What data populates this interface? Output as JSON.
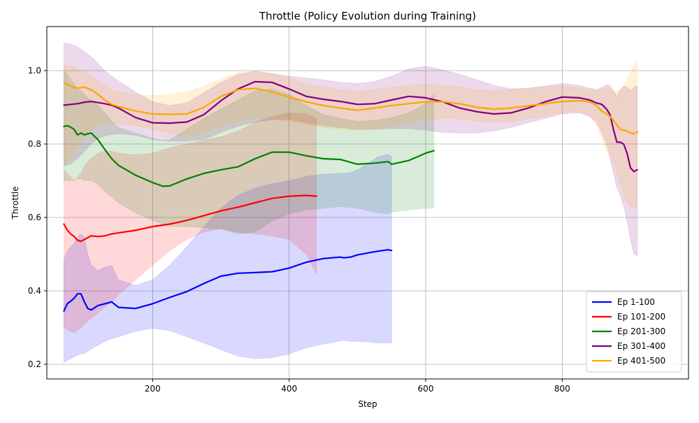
{
  "chart_data": {
    "type": "line",
    "title": "Throttle (Policy Evolution during Training)",
    "xlabel": "Step",
    "ylabel": "Throttle",
    "xlim": [
      45,
      985
    ],
    "ylim": [
      0.16,
      1.12
    ],
    "xticks": [
      200,
      400,
      600,
      800
    ],
    "yticks": [
      0.2,
      0.4,
      0.6,
      0.8,
      1.0
    ],
    "ytick_labels": [
      "0.2",
      "0.4",
      "0.6",
      "0.8",
      "1.0"
    ],
    "grid": true,
    "legend_position": "lower right",
    "band_opacity": 0.15,
    "series": [
      {
        "name": "Ep 1-100",
        "color": "#0000ff",
        "x": [
          70,
          75,
          80,
          85,
          90,
          95,
          100,
          105,
          110,
          120,
          130,
          140,
          150,
          175,
          200,
          225,
          250,
          275,
          300,
          325,
          350,
          375,
          400,
          425,
          450,
          475,
          480,
          490,
          500,
          520,
          530,
          545,
          550
        ],
        "y": [
          0.345,
          0.365,
          0.372,
          0.38,
          0.392,
          0.392,
          0.37,
          0.352,
          0.348,
          0.36,
          0.365,
          0.37,
          0.355,
          0.352,
          0.365,
          0.382,
          0.398,
          0.42,
          0.44,
          0.448,
          0.45,
          0.452,
          0.462,
          0.478,
          0.488,
          0.492,
          0.49,
          0.492,
          0.498,
          0.505,
          0.508,
          0.512,
          0.51
        ],
        "lower": [
          0.205,
          0.21,
          0.215,
          0.22,
          0.225,
          0.228,
          0.23,
          0.235,
          0.242,
          0.252,
          0.262,
          0.27,
          0.275,
          0.29,
          0.298,
          0.292,
          0.275,
          0.258,
          0.24,
          0.222,
          0.215,
          0.218,
          0.228,
          0.245,
          0.255,
          0.263,
          0.265,
          0.262,
          0.262,
          0.26,
          0.258,
          0.258,
          0.258
        ],
        "upper": [
          0.485,
          0.51,
          0.52,
          0.53,
          0.545,
          0.555,
          0.545,
          0.5,
          0.47,
          0.455,
          0.465,
          0.47,
          0.43,
          0.415,
          0.43,
          0.47,
          0.52,
          0.575,
          0.625,
          0.66,
          0.68,
          0.692,
          0.7,
          0.712,
          0.718,
          0.72,
          0.72,
          0.722,
          0.73,
          0.752,
          0.765,
          0.772,
          0.765
        ]
      },
      {
        "name": "Ep 101-200",
        "color": "#ff0000",
        "x": [
          70,
          75,
          80,
          85,
          90,
          95,
          100,
          110,
          120,
          130,
          140,
          150,
          175,
          200,
          225,
          250,
          275,
          300,
          325,
          350,
          375,
          400,
          425,
          440
        ],
        "y": [
          0.582,
          0.565,
          0.555,
          0.548,
          0.538,
          0.535,
          0.54,
          0.55,
          0.548,
          0.55,
          0.555,
          0.558,
          0.565,
          0.575,
          0.582,
          0.592,
          0.605,
          0.618,
          0.628,
          0.64,
          0.652,
          0.658,
          0.66,
          0.658
        ],
        "lower": [
          0.3,
          0.295,
          0.29,
          0.285,
          0.292,
          0.3,
          0.31,
          0.325,
          0.34,
          0.355,
          0.37,
          0.39,
          0.43,
          0.47,
          0.51,
          0.54,
          0.56,
          0.57,
          0.56,
          0.555,
          0.55,
          0.54,
          0.5,
          0.445
        ],
        "upper": [
          0.73,
          0.72,
          0.71,
          0.7,
          0.71,
          0.72,
          0.74,
          0.76,
          0.775,
          0.78,
          0.78,
          0.775,
          0.77,
          0.775,
          0.79,
          0.8,
          0.81,
          0.82,
          0.835,
          0.86,
          0.875,
          0.885,
          0.882,
          0.87
        ]
      },
      {
        "name": "Ep 201-300",
        "color": "#008000",
        "x": [
          70,
          75,
          80,
          85,
          90,
          95,
          100,
          105,
          110,
          120,
          130,
          140,
          150,
          175,
          200,
          215,
          225,
          250,
          275,
          300,
          325,
          350,
          375,
          400,
          425,
          450,
          475,
          500,
          525,
          545,
          550,
          575,
          600,
          612
        ],
        "y": [
          0.848,
          0.85,
          0.846,
          0.84,
          0.825,
          0.83,
          0.825,
          0.828,
          0.83,
          0.812,
          0.785,
          0.76,
          0.742,
          0.715,
          0.695,
          0.685,
          0.686,
          0.705,
          0.72,
          0.73,
          0.738,
          0.76,
          0.778,
          0.778,
          0.768,
          0.76,
          0.758,
          0.745,
          0.748,
          0.752,
          0.745,
          0.755,
          0.775,
          0.782
        ],
        "lower": [
          0.7,
          0.7,
          0.7,
          0.7,
          0.705,
          0.705,
          0.7,
          0.7,
          0.7,
          0.69,
          0.67,
          0.655,
          0.64,
          0.612,
          0.592,
          0.58,
          0.575,
          0.575,
          0.572,
          0.568,
          0.555,
          0.56,
          0.59,
          0.61,
          0.62,
          0.625,
          0.63,
          0.625,
          0.615,
          0.61,
          0.615,
          0.62,
          0.625,
          0.625
        ],
        "upper": [
          1.0,
          0.99,
          0.975,
          0.965,
          0.95,
          0.945,
          0.935,
          0.925,
          0.92,
          0.905,
          0.885,
          0.862,
          0.845,
          0.83,
          0.815,
          0.81,
          0.812,
          0.84,
          0.87,
          0.895,
          0.92,
          0.945,
          0.95,
          0.935,
          0.905,
          0.88,
          0.87,
          0.862,
          0.865,
          0.87,
          0.872,
          0.885,
          0.91,
          0.935
        ]
      },
      {
        "name": "Ep 301-400",
        "color": "#800080",
        "x": [
          70,
          80,
          90,
          100,
          110,
          120,
          130,
          140,
          150,
          175,
          200,
          225,
          250,
          275,
          300,
          325,
          350,
          375,
          400,
          425,
          450,
          475,
          500,
          525,
          550,
          575,
          600,
          625,
          650,
          675,
          700,
          725,
          750,
          775,
          800,
          825,
          840,
          850,
          858,
          865,
          870,
          875,
          880,
          885,
          890,
          895,
          900,
          905,
          910
        ],
        "y": [
          0.906,
          0.908,
          0.91,
          0.914,
          0.916,
          0.913,
          0.91,
          0.906,
          0.898,
          0.872,
          0.858,
          0.857,
          0.86,
          0.88,
          0.918,
          0.95,
          0.97,
          0.968,
          0.95,
          0.93,
          0.922,
          0.916,
          0.908,
          0.91,
          0.92,
          0.93,
          0.926,
          0.915,
          0.898,
          0.888,
          0.882,
          0.885,
          0.898,
          0.915,
          0.928,
          0.926,
          0.92,
          0.912,
          0.908,
          0.895,
          0.88,
          0.84,
          0.805,
          0.805,
          0.8,
          0.775,
          0.735,
          0.725,
          0.73
        ],
        "lower": [
          0.74,
          0.745,
          0.76,
          0.78,
          0.8,
          0.815,
          0.822,
          0.826,
          0.828,
          0.824,
          0.812,
          0.808,
          0.808,
          0.812,
          0.832,
          0.848,
          0.86,
          0.866,
          0.866,
          0.858,
          0.85,
          0.845,
          0.84,
          0.84,
          0.842,
          0.842,
          0.838,
          0.832,
          0.83,
          0.83,
          0.836,
          0.845,
          0.858,
          0.87,
          0.882,
          0.885,
          0.875,
          0.86,
          0.83,
          0.8,
          0.76,
          0.72,
          0.68,
          0.66,
          0.63,
          0.59,
          0.54,
          0.5,
          0.495
        ],
        "upper": [
          1.075,
          1.072,
          1.065,
          1.052,
          1.038,
          1.02,
          1.0,
          0.985,
          0.972,
          0.942,
          0.915,
          0.905,
          0.912,
          0.94,
          0.968,
          0.99,
          0.998,
          0.992,
          0.985,
          0.98,
          0.975,
          0.968,
          0.965,
          0.97,
          0.985,
          1.005,
          1.012,
          1.002,
          0.99,
          0.975,
          0.96,
          0.95,
          0.952,
          0.958,
          0.965,
          0.96,
          0.952,
          0.948,
          0.955,
          0.962,
          0.96,
          0.945,
          0.93,
          0.948,
          0.958,
          0.955,
          0.945,
          0.955,
          0.958
        ]
      },
      {
        "name": "Ep 401-500",
        "color": "#ffa500",
        "x": [
          70,
          80,
          90,
          100,
          110,
          120,
          130,
          140,
          150,
          175,
          200,
          225,
          250,
          275,
          300,
          325,
          350,
          375,
          400,
          425,
          450,
          475,
          500,
          525,
          550,
          575,
          600,
          625,
          650,
          675,
          700,
          725,
          750,
          775,
          800,
          825,
          840,
          850,
          858,
          865,
          870,
          875,
          880,
          885,
          890,
          895,
          900,
          905,
          910
        ],
        "y": [
          0.968,
          0.958,
          0.952,
          0.955,
          0.948,
          0.935,
          0.92,
          0.908,
          0.902,
          0.89,
          0.882,
          0.881,
          0.882,
          0.9,
          0.93,
          0.948,
          0.952,
          0.942,
          0.928,
          0.915,
          0.905,
          0.898,
          0.892,
          0.898,
          0.905,
          0.91,
          0.915,
          0.915,
          0.91,
          0.9,
          0.895,
          0.898,
          0.904,
          0.91,
          0.916,
          0.918,
          0.915,
          0.905,
          0.89,
          0.882,
          0.875,
          0.865,
          0.852,
          0.84,
          0.838,
          0.835,
          0.83,
          0.828,
          0.833
        ],
        "lower": [
          0.74,
          0.76,
          0.79,
          0.82,
          0.84,
          0.85,
          0.855,
          0.856,
          0.855,
          0.85,
          0.84,
          0.83,
          0.822,
          0.83,
          0.848,
          0.862,
          0.87,
          0.87,
          0.862,
          0.852,
          0.845,
          0.84,
          0.838,
          0.84,
          0.848,
          0.858,
          0.866,
          0.87,
          0.868,
          0.862,
          0.858,
          0.86,
          0.868,
          0.876,
          0.886,
          0.888,
          0.878,
          0.85,
          0.815,
          0.78,
          0.77,
          0.75,
          0.72,
          0.69,
          0.66,
          0.64,
          0.63,
          0.625,
          0.63
        ],
        "upper": [
          1.015,
          1.012,
          1.005,
          0.995,
          0.985,
          0.972,
          0.958,
          0.948,
          0.942,
          0.935,
          0.932,
          0.935,
          0.942,
          0.958,
          0.978,
          0.995,
          1.0,
          0.992,
          0.98,
          0.965,
          0.955,
          0.948,
          0.944,
          0.948,
          0.955,
          0.96,
          0.962,
          0.96,
          0.955,
          0.948,
          0.945,
          0.948,
          0.952,
          0.958,
          0.958,
          0.954,
          0.948,
          0.945,
          0.95,
          0.955,
          0.95,
          0.945,
          0.942,
          0.948,
          0.958,
          0.975,
          0.995,
          1.015,
          1.03
        ]
      }
    ]
  }
}
